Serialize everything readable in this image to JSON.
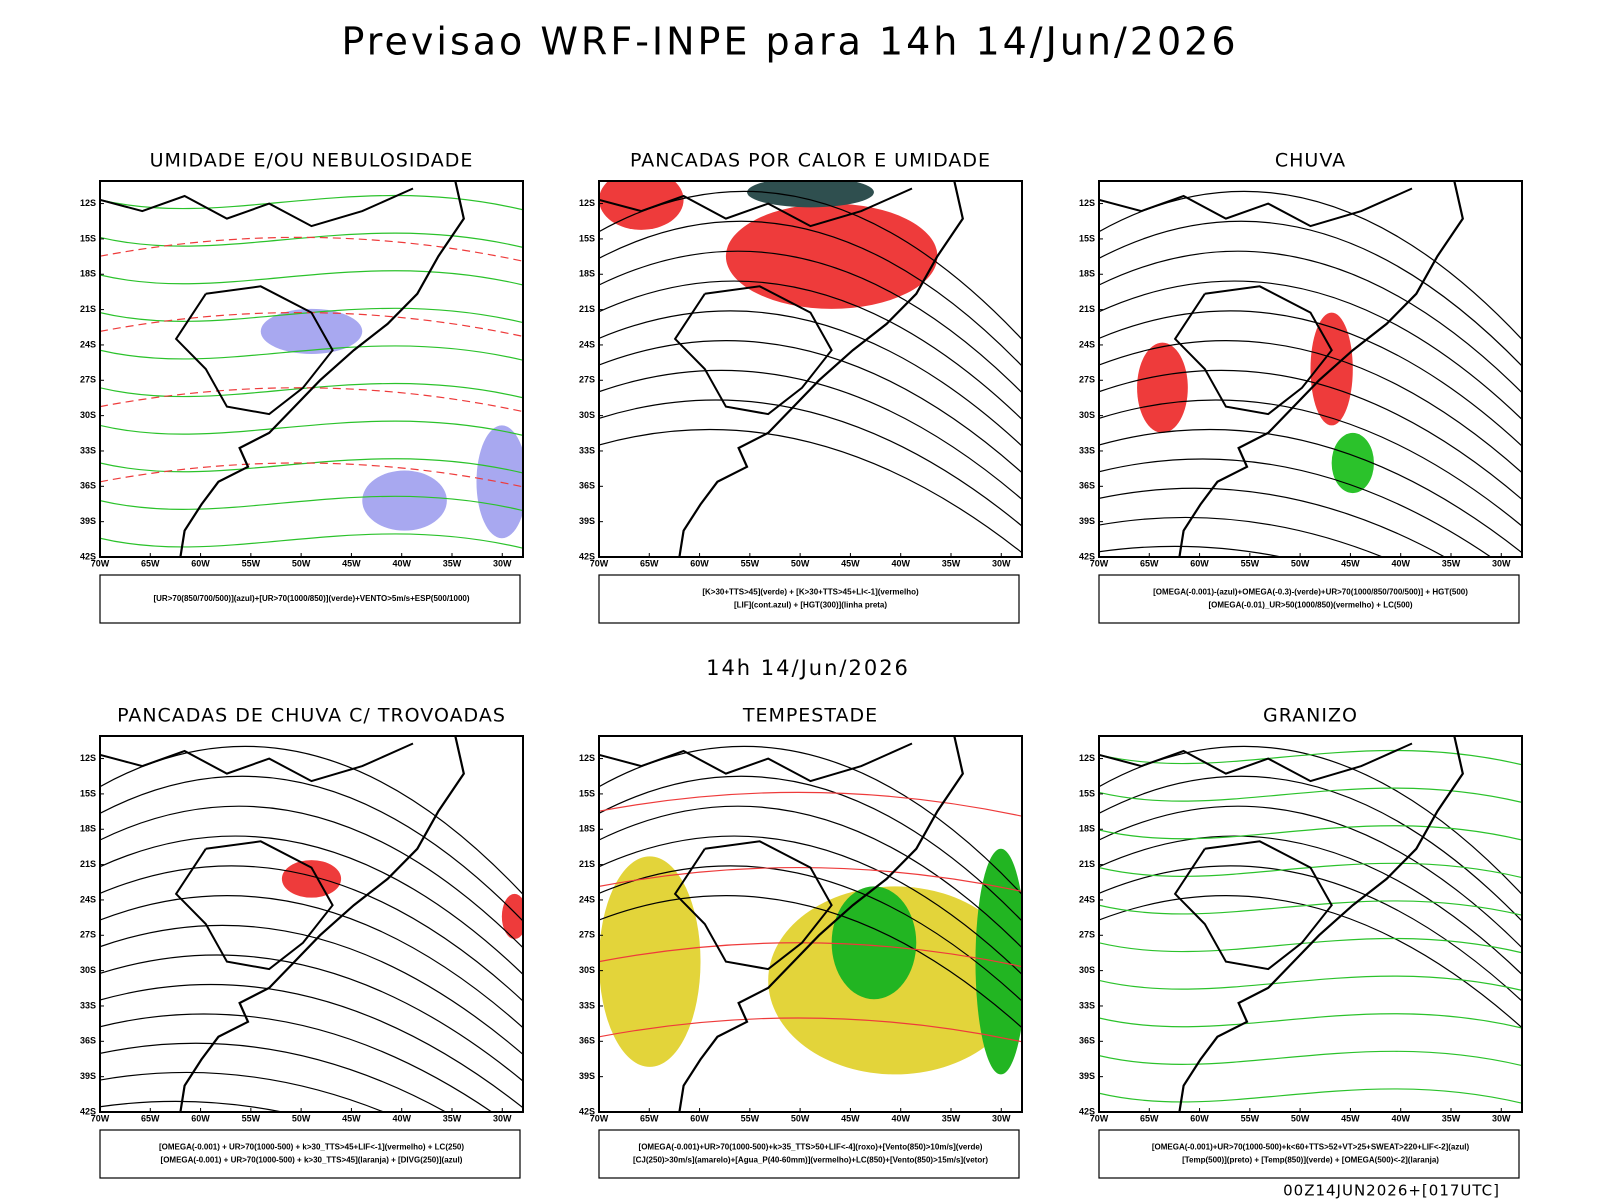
{
  "header": {
    "title": "Previsao WRF-INPE  para 14h 14/Jun/2026",
    "subtitle": "14h 14/Jun/2026",
    "footer": "00Z14JUN2026+[017UTC]"
  },
  "lat_ticks": [
    "12S",
    "15S",
    "18S",
    "21S",
    "24S",
    "27S",
    "30S",
    "33S",
    "36S",
    "39S",
    "42S"
  ],
  "lon_ticks": [
    "70W",
    "65W",
    "60W",
    "55W",
    "50W",
    "45W",
    "40W",
    "35W",
    "30W"
  ],
  "panels": [
    {
      "title": "UMIDADE E/OU NEBULOSIDADE",
      "legend": [
        "[UR>70(850/700/500)](azul)+[UR>70(1000/850)](verde)+VENTO>5m/s+ESP(500/1000)"
      ]
    },
    {
      "title": "PANCADAS POR CALOR E UMIDADE",
      "legend": [
        "[K>30+TTS>45](verde) + [K>30+TTS>45+LI<-1](vermelho)",
        "[LIF](cont.azul) + [HGT(300)](linha preta)"
      ]
    },
    {
      "title": "CHUVA",
      "legend": [
        "[OMEGA(-0.001)-(azul)+OMEGA(-0.3)-(verde)+UR>70(1000/850/700/500)] + HGT(500)",
        "[OMEGA(-0.01)_UR>50(1000/850)(vermelho) + LC(500)"
      ]
    },
    {
      "title": "PANCADAS DE CHUVA C/ TROVOADAS",
      "legend": [
        "[OMEGA(-0.001) + UR>70(1000-500) + k>30_TTS>45+LIF<-1](vermelho) + LC(250)",
        "[OMEGA(-0.001) + UR>70(1000-500) + k>30_TTS>45](laranja) + [DIVG(250)](azul)"
      ]
    },
    {
      "title": "TEMPESTADE",
      "legend": [
        "[OMEGA(-0.001)+UR>70(1000-500)+k>35_TTS>50+LIF<-4](roxo)+[Vento(850)>10m/s](verde)",
        "[CJ(250)>30m/s](amarelo)+[Agua_P(40-60mm)](vermelho)+LC(850)+[Vento(850)>15m/s](vetor)"
      ]
    },
    {
      "title": "GRANIZO",
      "legend": [
        "[OMEGA(-0.001)+UR>70(1000-500)+k<60+TTS>52+VT>25+SWEAT>220+LIF<-2](azul)",
        "[Temp(500)](preto) + [Temp(850)](verde) + [OMEGA(500)<-2](laranja)"
      ]
    }
  ]
}
